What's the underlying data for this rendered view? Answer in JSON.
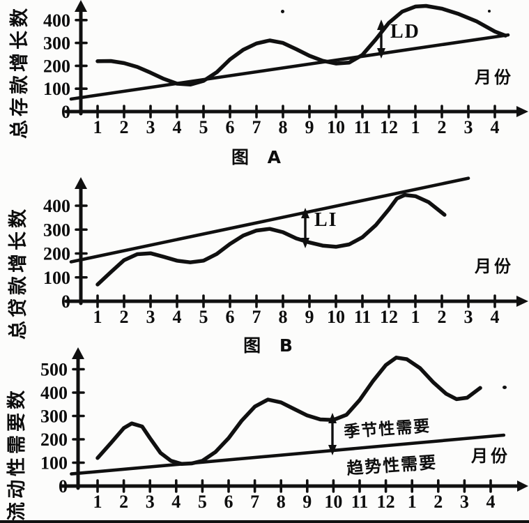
{
  "figure": {
    "description_labels": {
      "chartA_caption": "图 A",
      "chartB_caption": "图 B"
    }
  },
  "chart_data": [
    {
      "type": "line",
      "title": "图 A",
      "ylabel": "总存款增长数",
      "xlabel": "月份",
      "x_tick_labels": [
        "1",
        "2",
        "3",
        "4",
        "5",
        "6",
        "7",
        "8",
        "9",
        "10",
        "11",
        "12",
        "1",
        "2",
        "3",
        "4"
      ],
      "y_ticks": [
        400,
        300,
        200,
        100,
        0
      ],
      "ylim": [
        0,
        470
      ],
      "grid": false,
      "annotations": [
        {
          "text": "LD",
          "meaning_position": "double-arrow between trend line and seasonal peak near month 12"
        }
      ],
      "series": [
        {
          "key": "curve",
          "x": [
            1,
            1.5,
            2,
            2.5,
            3,
            3.5,
            4,
            4.5,
            5,
            5.5,
            6,
            6.5,
            7,
            7.5,
            8,
            8.5,
            9,
            9.5,
            10,
            10.5,
            11,
            11.5,
            12,
            12.5,
            13,
            13.4,
            14,
            14.6,
            15.3,
            16,
            16.4
          ],
          "values": [
            220,
            221,
            212,
            195,
            170,
            143,
            122,
            118,
            134,
            172,
            228,
            270,
            298,
            311,
            300,
            273,
            244,
            222,
            210,
            214,
            248,
            315,
            388,
            437,
            459,
            462,
            450,
            428,
            395,
            350,
            332
          ]
        },
        {
          "key": "trend",
          "x": [
            0,
            16.5
          ],
          "values": [
            55,
            335
          ]
        }
      ]
    },
    {
      "type": "line",
      "title": "图 B",
      "ylabel": "总贷款增长数",
      "xlabel": "月份",
      "x_tick_labels": [
        "1",
        "2",
        "3",
        "4",
        "5",
        "6",
        "7",
        "8",
        "9",
        "10",
        "11",
        "12",
        "1",
        "2",
        "3",
        "4"
      ],
      "y_ticks": [
        400,
        300,
        200,
        100,
        0
      ],
      "ylim": [
        0,
        520
      ],
      "grid": false,
      "annotations": [
        {
          "text": "LI",
          "meaning_position": "double-arrow between seasonal trough near month 10 and trend line"
        }
      ],
      "series": [
        {
          "key": "curve",
          "x": [
            1,
            1.5,
            2,
            2.5,
            3,
            3.5,
            4,
            4.5,
            5,
            5.5,
            6,
            6.5,
            7,
            7.5,
            8,
            8.5,
            9,
            9.5,
            10,
            10.5,
            11,
            11.5,
            12,
            12.3,
            12.6,
            13,
            13.5,
            14.1
          ],
          "values": [
            70,
            122,
            172,
            197,
            201,
            186,
            170,
            163,
            170,
            198,
            240,
            275,
            296,
            303,
            289,
            263,
            246,
            233,
            228,
            238,
            268,
            318,
            385,
            430,
            445,
            440,
            415,
            362
          ]
        },
        {
          "key": "trend",
          "x": [
            0,
            15
          ],
          "values": [
            165,
            515
          ]
        }
      ]
    },
    {
      "type": "line",
      "ylabel": "流动性需要数",
      "xlabel": "月份",
      "x_tick_labels": [
        "1",
        "2",
        "3",
        "4",
        "5",
        "6",
        "7",
        "8",
        "9",
        "10",
        "11",
        "12",
        "1",
        "2",
        "3",
        "4"
      ],
      "y_ticks": [
        500,
        400,
        300,
        200,
        100,
        0
      ],
      "ylim": [
        0,
        560
      ],
      "grid": false,
      "annotations": [
        {
          "text": "季节性需要",
          "meaning_position": "above trend line, with double-arrow to curve near month 10"
        },
        {
          "text": "趋势性需要",
          "meaning_position": "below the rising straight trend line"
        }
      ],
      "series": [
        {
          "key": "curve",
          "name": "季节性需要",
          "x": [
            1,
            1.5,
            2,
            2.3,
            2.7,
            3,
            3.4,
            3.8,
            4.2,
            4.6,
            5,
            5.5,
            6,
            6.5,
            7,
            7.5,
            8,
            8.5,
            9,
            9.5,
            10,
            10.5,
            11,
            11.5,
            12,
            12.4,
            12.8,
            13.3,
            13.8,
            14.3,
            14.7,
            15.1,
            15.6
          ],
          "values": [
            120,
            183,
            248,
            268,
            255,
            205,
            142,
            108,
            95,
            97,
            108,
            146,
            205,
            280,
            340,
            370,
            358,
            330,
            302,
            285,
            283,
            305,
            368,
            448,
            518,
            550,
            543,
            505,
            445,
            395,
            372,
            378,
            420
          ]
        },
        {
          "key": "trend",
          "name": "趋势性需要",
          "x": [
            0,
            16.5
          ],
          "values": [
            52,
            218
          ]
        }
      ]
    }
  ]
}
